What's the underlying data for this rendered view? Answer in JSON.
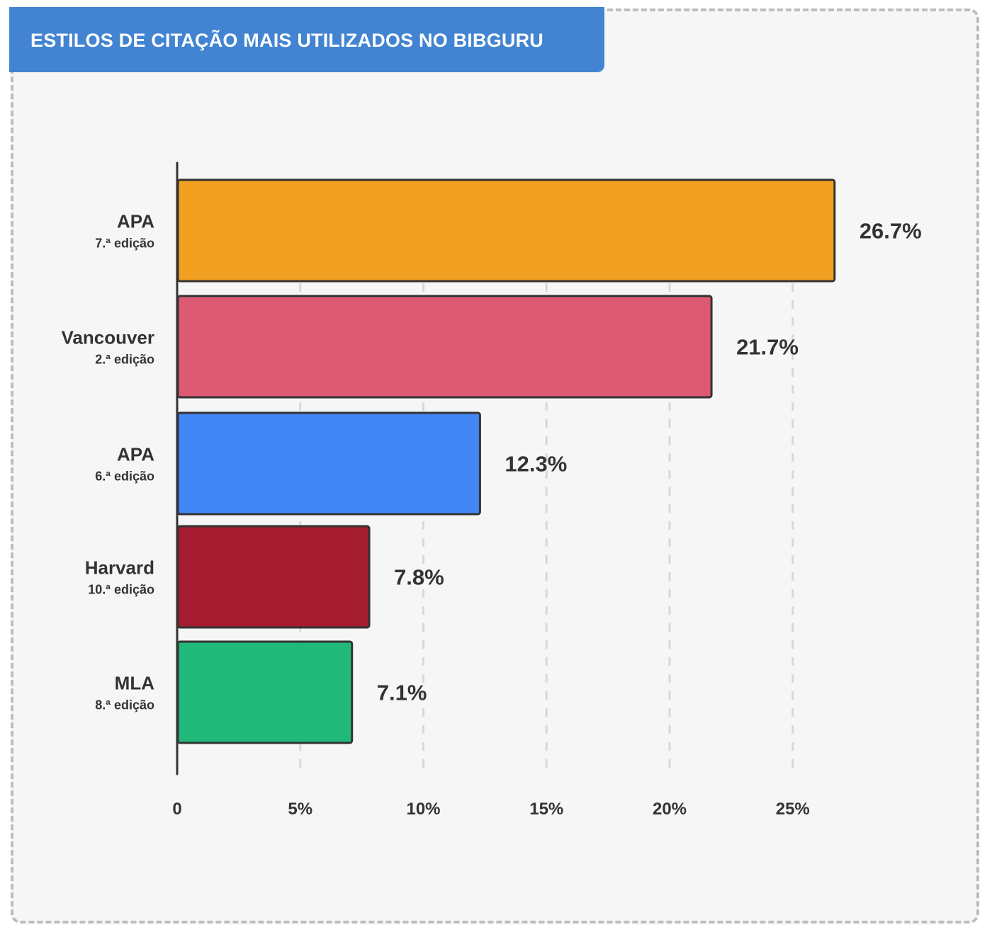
{
  "chart_data": {
    "type": "bar",
    "orientation": "horizontal",
    "title": "ESTILOS DE CITAÇÃO MAIS UTILIZADOS NO BIBGURU",
    "categories": [
      {
        "name": "APA",
        "edition": "7.ª edição"
      },
      {
        "name": "Vancouver",
        "edition": "2.ª edição"
      },
      {
        "name": "APA",
        "edition": "6.ª edição"
      },
      {
        "name": "Harvard",
        "edition": "10.ª edição"
      },
      {
        "name": "MLA",
        "edition": "8.ª edição"
      }
    ],
    "values": [
      26.7,
      21.7,
      12.3,
      7.8,
      7.1
    ],
    "value_labels": [
      "26.7%",
      "21.7%",
      "12.3%",
      "7.8%",
      "7.1%"
    ],
    "colors": [
      "#f1a022",
      "#de5a74",
      "#4285f4",
      "#a51c30",
      "#20b97a"
    ],
    "xlim": [
      0,
      30
    ],
    "xticks": [
      0,
      5,
      10,
      15,
      20,
      25
    ],
    "xtick_labels": [
      "0",
      "5%",
      "10%",
      "15%",
      "20%",
      "25%"
    ],
    "xlabel": "",
    "ylabel": "",
    "grid": "vertical dashed",
    "legend": "none"
  }
}
